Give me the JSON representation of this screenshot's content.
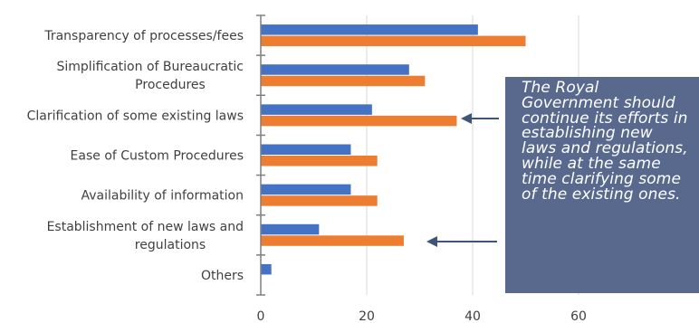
{
  "chart_data": {
    "type": "bar",
    "orientation": "horizontal",
    "categories": [
      [
        "Transparency of processes/fees"
      ],
      [
        "Simplification of Bureaucratic",
        "Procedures"
      ],
      [
        "Clarification of some existing laws"
      ],
      [
        "Ease of Custom Procedures"
      ],
      [
        "Availability of information"
      ],
      [
        "Establishment of new laws and",
        "regulations"
      ],
      [
        "Others"
      ]
    ],
    "series": [
      {
        "color": "#4472c4",
        "values": [
          41,
          28,
          21,
          17,
          17,
          11,
          2
        ]
      },
      {
        "color": "#ed7d31",
        "values": [
          50,
          31,
          37,
          22,
          22,
          27,
          0
        ]
      }
    ],
    "xlim": [
      0,
      80
    ],
    "xticks": [
      0,
      20,
      40,
      60
    ],
    "grid": true
  },
  "callout": {
    "text": "The Royal Government should continue its efforts in establishing new laws and regulations, while at the same time clarifying some of the existing ones.",
    "background": "#58698d"
  },
  "colors": {
    "arrow": "#3e5578",
    "axis": "#7f7f7f",
    "grid": "#d9d9d9"
  }
}
